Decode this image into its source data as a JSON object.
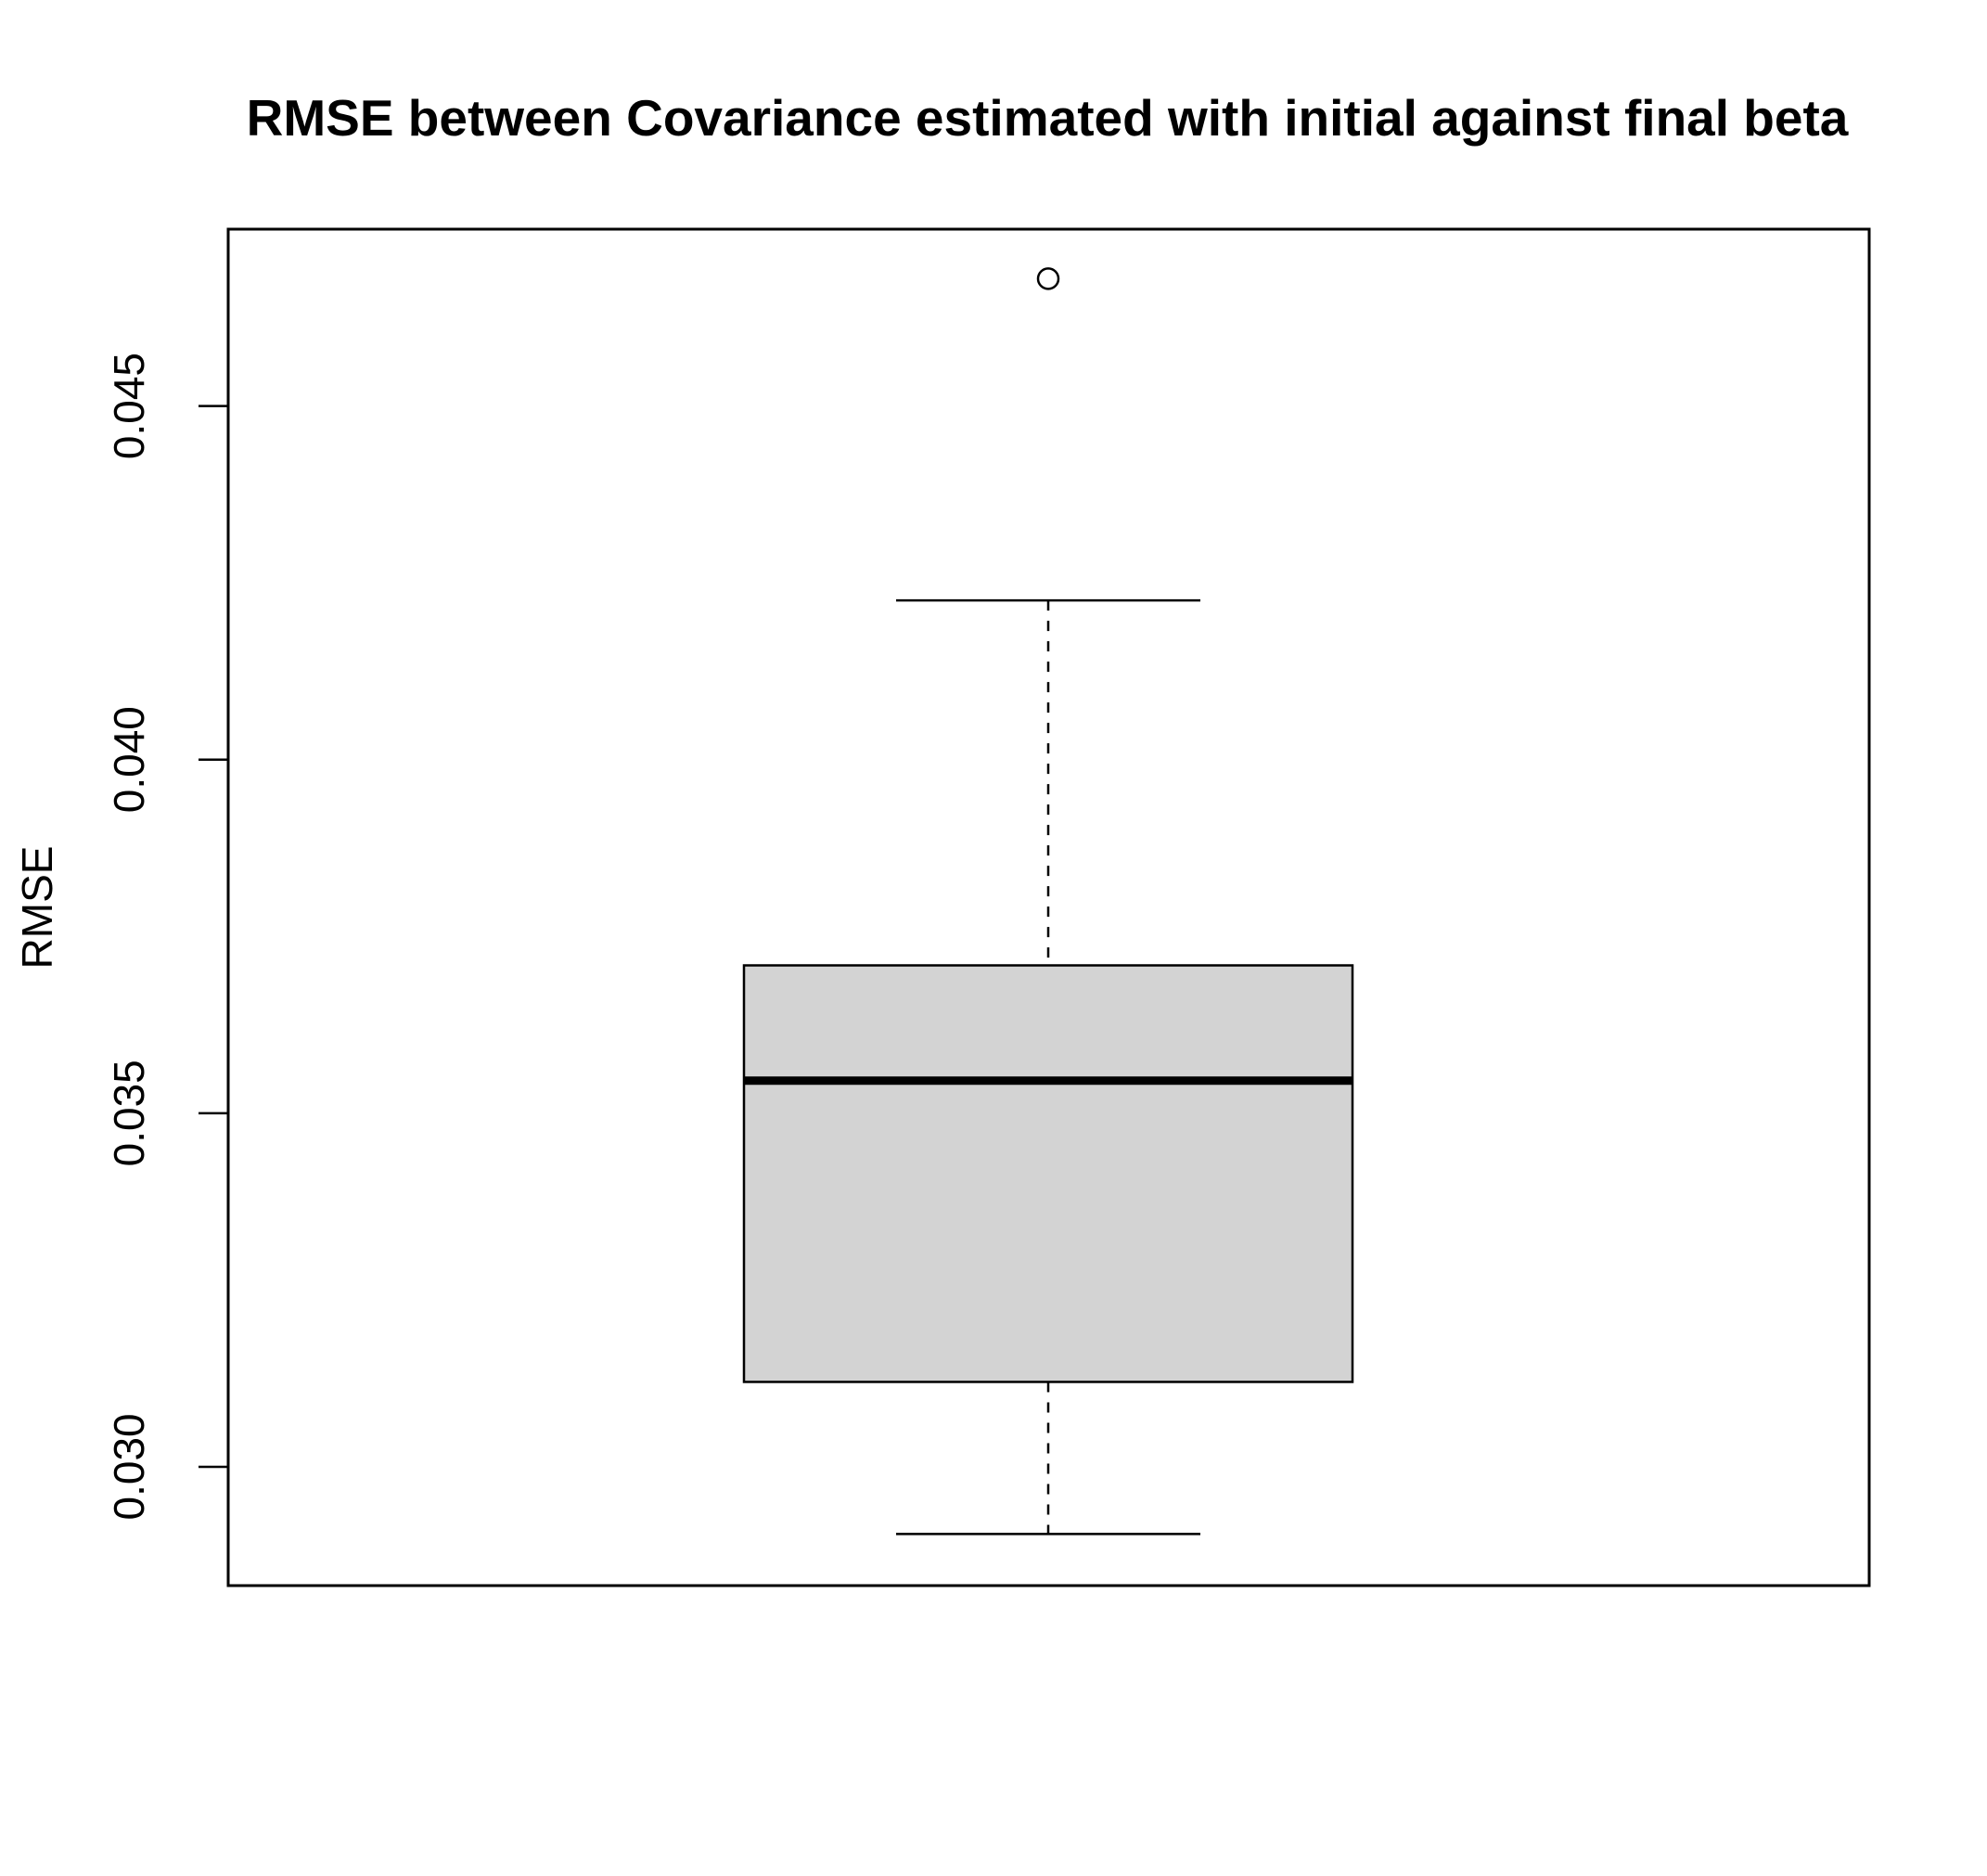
{
  "chart_data": {
    "type": "box",
    "title": "RMSE between Covariance estimated with initial against final beta",
    "xlabel": "",
    "ylabel": "RMSE",
    "ylim": [
      0.02832,
      0.0475
    ],
    "yticks": [
      0.03,
      0.035,
      0.04,
      0.045
    ],
    "ytick_labels": [
      "0.030",
      "0.035",
      "0.040",
      "0.045"
    ],
    "grid": false,
    "box": {
      "whisker_low": 0.02905,
      "q1": 0.0312,
      "median": 0.03546,
      "q3": 0.03709,
      "whisker_high": 0.04225,
      "outliers": [
        0.0468
      ],
      "fill": "#d3d3d3"
    }
  }
}
